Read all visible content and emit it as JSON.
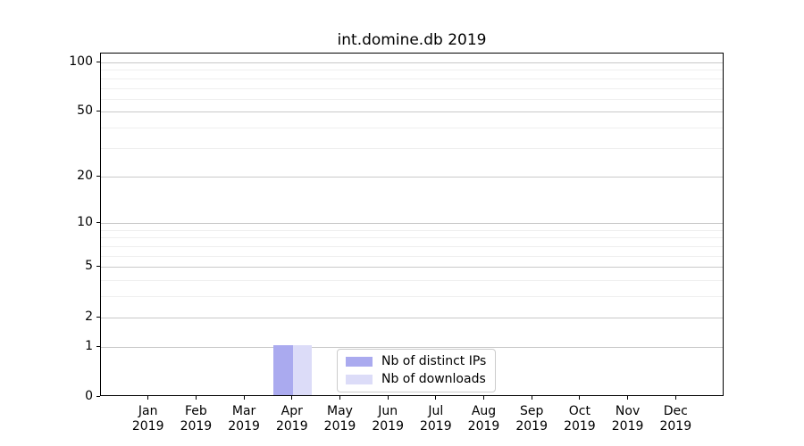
{
  "chart_data": {
    "type": "bar",
    "title": "int.domine.db 2019",
    "categories": [
      {
        "month": "Jan",
        "year": "2019"
      },
      {
        "month": "Feb",
        "year": "2019"
      },
      {
        "month": "Mar",
        "year": "2019"
      },
      {
        "month": "Apr",
        "year": "2019"
      },
      {
        "month": "May",
        "year": "2019"
      },
      {
        "month": "Jun",
        "year": "2019"
      },
      {
        "month": "Jul",
        "year": "2019"
      },
      {
        "month": "Aug",
        "year": "2019"
      },
      {
        "month": "Sep",
        "year": "2019"
      },
      {
        "month": "Oct",
        "year": "2019"
      },
      {
        "month": "Nov",
        "year": "2019"
      },
      {
        "month": "Dec",
        "year": "2019"
      }
    ],
    "series": [
      {
        "name": "Nb of distinct IPs",
        "color": "#aaaaef",
        "values": [
          0,
          0,
          0,
          1,
          0,
          0,
          0,
          0,
          0,
          0,
          0,
          0
        ]
      },
      {
        "name": "Nb of downloads",
        "color": "#dcdcf8",
        "values": [
          0,
          0,
          0,
          1,
          0,
          0,
          0,
          0,
          0,
          0,
          0,
          0
        ]
      }
    ],
    "y_axis": {
      "scale": "log1p",
      "major_ticks": [
        0,
        1,
        2,
        5,
        10,
        20,
        50,
        100
      ],
      "minor_gridlines": [
        3,
        4,
        6,
        7,
        8,
        9,
        30,
        40,
        60,
        70,
        80,
        90
      ],
      "max_value": 113
    },
    "legend": {
      "position": "lower-center"
    },
    "colors": {
      "grid_major": "#c9c9c9",
      "grid_minor": "#efefef",
      "axis": "#000000",
      "background": "#ffffff"
    }
  }
}
